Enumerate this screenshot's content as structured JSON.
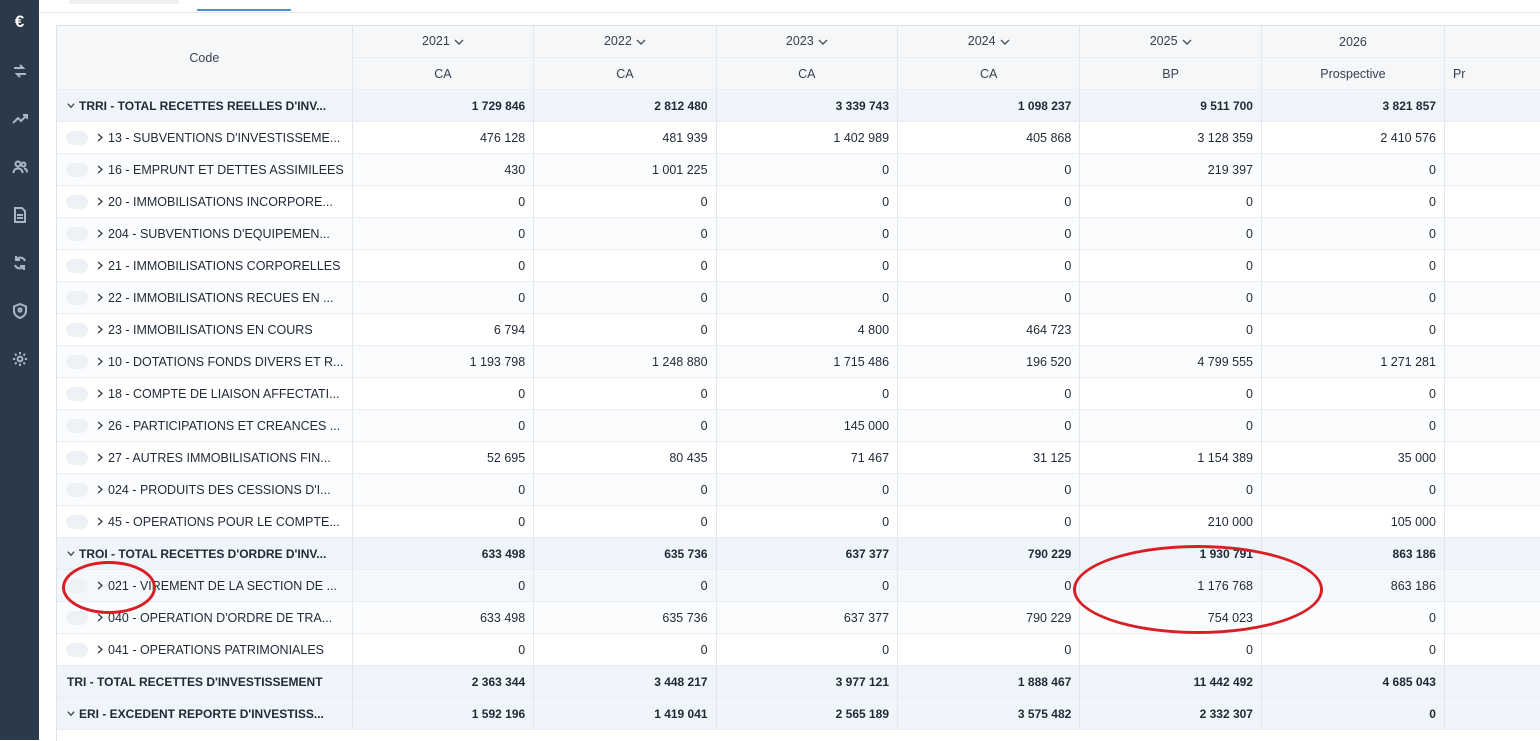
{
  "sidebar": {
    "logo": "€",
    "items": [
      {
        "icon": "transfer-icon"
      },
      {
        "icon": "trend-icon"
      },
      {
        "icon": "users-icon"
      },
      {
        "icon": "document-icon"
      },
      {
        "icon": "refresh-icon"
      },
      {
        "icon": "shield-icon"
      },
      {
        "icon": "gear-icon"
      }
    ]
  },
  "table": {
    "code_header": "Code",
    "years": [
      {
        "year": "2021",
        "type": "CA",
        "dropdown": true
      },
      {
        "year": "2022",
        "type": "CA",
        "dropdown": true
      },
      {
        "year": "2023",
        "type": "CA",
        "dropdown": true
      },
      {
        "year": "2024",
        "type": "CA",
        "dropdown": true
      },
      {
        "year": "2025",
        "type": "BP",
        "dropdown": true
      },
      {
        "year": "2026",
        "type": "Prospective",
        "dropdown": false
      },
      {
        "year": "",
        "type": "Pr",
        "dropdown": false
      }
    ],
    "rows": [
      {
        "kind": "total",
        "expand": "down",
        "label": "TRRI - TOTAL RECETTES REELLES D'INV...",
        "values": [
          "1 729 846",
          "2 812 480",
          "3 339 743",
          "1 098 237",
          "9 511 700",
          "3 821 857",
          ""
        ]
      },
      {
        "kind": "sub",
        "label": "13 - SUBVENTIONS D'INVESTISSEME...",
        "values": [
          "476 128",
          "481 939",
          "1 402 989",
          "405 868",
          "3 128 359",
          "2 410 576",
          ""
        ]
      },
      {
        "kind": "sub",
        "label": "16 - EMPRUNT ET DETTES ASSIMILEES",
        "values": [
          "430",
          "1 001 225",
          "0",
          "0",
          "219 397",
          "0",
          ""
        ]
      },
      {
        "kind": "sub",
        "label": "20 - IMMOBILISATIONS INCORPORE...",
        "values": [
          "0",
          "0",
          "0",
          "0",
          "0",
          "0",
          ""
        ]
      },
      {
        "kind": "sub",
        "label": "204 - SUBVENTIONS D'EQUIPEMEN...",
        "values": [
          "0",
          "0",
          "0",
          "0",
          "0",
          "0",
          ""
        ]
      },
      {
        "kind": "sub",
        "label": "21 - IMMOBILISATIONS CORPORELLES",
        "values": [
          "0",
          "0",
          "0",
          "0",
          "0",
          "0",
          ""
        ]
      },
      {
        "kind": "sub",
        "label": "22 - IMMOBILISATIONS RECUES EN ...",
        "values": [
          "0",
          "0",
          "0",
          "0",
          "0",
          "0",
          ""
        ]
      },
      {
        "kind": "sub",
        "label": "23 - IMMOBILISATIONS EN COURS",
        "values": [
          "6 794",
          "0",
          "4 800",
          "464 723",
          "0",
          "0",
          ""
        ]
      },
      {
        "kind": "sub",
        "label": "10 - DOTATIONS FONDS DIVERS ET R...",
        "values": [
          "1 193 798",
          "1 248 880",
          "1 715 486",
          "196 520",
          "4 799 555",
          "1 271 281",
          ""
        ]
      },
      {
        "kind": "sub",
        "label": "18 - COMPTE DE LIAISON AFFECTATI...",
        "values": [
          "0",
          "0",
          "0",
          "0",
          "0",
          "0",
          ""
        ]
      },
      {
        "kind": "sub",
        "label": "26 - PARTICIPATIONS ET CREANCES ...",
        "values": [
          "0",
          "0",
          "145 000",
          "0",
          "0",
          "0",
          ""
        ]
      },
      {
        "kind": "sub",
        "label": "27 - AUTRES IMMOBILISATIONS FIN...",
        "values": [
          "52 695",
          "80 435",
          "71 467",
          "31 125",
          "1 154 389",
          "35 000",
          ""
        ]
      },
      {
        "kind": "sub",
        "label": "024 - PRODUITS DES CESSIONS D'I...",
        "values": [
          "0",
          "0",
          "0",
          "0",
          "0",
          "0",
          ""
        ]
      },
      {
        "kind": "sub",
        "label": "45 - OPERATIONS POUR LE COMPTE...",
        "values": [
          "0",
          "0",
          "0",
          "0",
          "210 000",
          "105 000",
          ""
        ]
      },
      {
        "kind": "total",
        "expand": "down",
        "label": "TROI - TOTAL RECETTES D'ORDRE D'INV...",
        "values": [
          "633 498",
          "635 736",
          "637 377",
          "790 229",
          "1 930 791",
          "863 186",
          ""
        ]
      },
      {
        "kind": "sub",
        "highlight": true,
        "label": "021 - VIREMENT DE LA SECTION DE ...",
        "values": [
          "0",
          "0",
          "0",
          "0",
          "1 176 768",
          "863 186",
          ""
        ]
      },
      {
        "kind": "sub",
        "label": "040 - OPERATION D'ORDRE DE TRA...",
        "values": [
          "633 498",
          "635 736",
          "637 377",
          "790 229",
          "754 023",
          "0",
          ""
        ]
      },
      {
        "kind": "sub",
        "label": "041 - OPERATIONS PATRIMONIALES",
        "values": [
          "0",
          "0",
          "0",
          "0",
          "0",
          "0",
          ""
        ]
      },
      {
        "kind": "total",
        "expand": "none",
        "label": "TRI - TOTAL RECETTES D'INVESTISSEMENT",
        "values": [
          "2 363 344",
          "3 448 217",
          "3 977 121",
          "1 888 467",
          "11 442 492",
          "4 685 043",
          ""
        ]
      },
      {
        "kind": "total",
        "expand": "down",
        "label": "ERI - EXCEDENT REPORTE D'INVESTISS...",
        "values": [
          "1 592 196",
          "1 419 041",
          "2 565 189",
          "3 575 482",
          "2 332 307",
          "0",
          ""
        ]
      }
    ]
  },
  "colors": {
    "sidebar": "#2b3a4a",
    "accent": "#4b8fd8",
    "annotation": "#d71f25",
    "total_row": "#f0f5fb"
  }
}
